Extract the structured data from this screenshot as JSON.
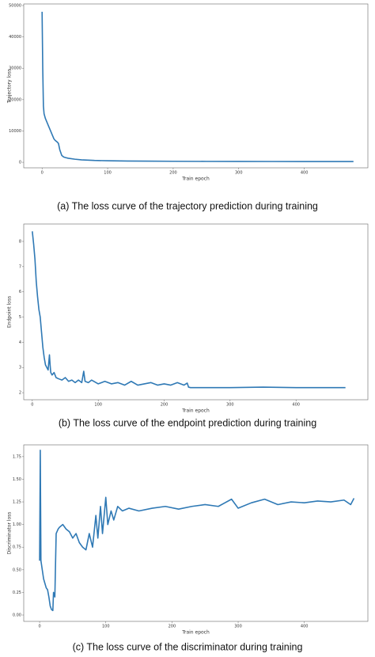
{
  "chart_data": [
    {
      "type": "line",
      "caption": "(a) The loss curve of the trajectory prediction during training",
      "xlabel": "Train epoch",
      "ylabel": "Trajectory loss",
      "color": "#2f79b5",
      "x": [
        0,
        1,
        2,
        3,
        5,
        8,
        10,
        13,
        15,
        18,
        20,
        23,
        25,
        27,
        30,
        33,
        36,
        40,
        50,
        60,
        70,
        80,
        100,
        130,
        160,
        200,
        250,
        300,
        350,
        400,
        450,
        475
      ],
      "values": [
        48000,
        30000,
        18000,
        15500,
        14000,
        12500,
        11500,
        10000,
        9000,
        7500,
        7000,
        6500,
        6000,
        4000,
        2200,
        1700,
        1500,
        1300,
        1000,
        800,
        700,
        600,
        500,
        420,
        380,
        330,
        300,
        280,
        270,
        260,
        250,
        250
      ],
      "xlim": [
        -28,
        497
      ],
      "xticks": [
        0,
        100,
        200,
        300,
        400
      ],
      "ylim": [
        -1750,
        50500
      ],
      "yticks": [
        0,
        10000,
        20000,
        30000,
        40000,
        50000
      ]
    },
    {
      "type": "line",
      "caption": "(b) The loss curve of the endpoint prediction during training",
      "xlabel": "Train epoch",
      "ylabel": "Endpoint loss",
      "color": "#2f79b5",
      "x": [
        0,
        2,
        4,
        6,
        8,
        10,
        12,
        14,
        16,
        18,
        20,
        22,
        24,
        26,
        27,
        28,
        30,
        33,
        36,
        40,
        45,
        50,
        55,
        60,
        65,
        70,
        75,
        78,
        80,
        85,
        90,
        100,
        110,
        120,
        130,
        140,
        150,
        160,
        170,
        180,
        190,
        200,
        210,
        220,
        230,
        235,
        237,
        240,
        260,
        300,
        350,
        400,
        450,
        475
      ],
      "values": [
        8.4,
        7.9,
        7.3,
        6.4,
        5.8,
        5.3,
        5.0,
        4.4,
        3.8,
        3.4,
        3.1,
        3.0,
        2.9,
        3.5,
        3.1,
        2.8,
        2.7,
        2.8,
        2.6,
        2.55,
        2.5,
        2.6,
        2.45,
        2.5,
        2.4,
        2.5,
        2.4,
        2.85,
        2.45,
        2.4,
        2.5,
        2.35,
        2.45,
        2.35,
        2.4,
        2.3,
        2.45,
        2.3,
        2.35,
        2.4,
        2.3,
        2.35,
        2.3,
        2.4,
        2.3,
        2.38,
        2.22,
        2.2,
        2.2,
        2.2,
        2.22,
        2.2,
        2.2,
        2.2
      ],
      "xlim": [
        -13,
        509
      ],
      "xticks": [
        0,
        100,
        200,
        300,
        400
      ],
      "ylim": [
        1.72,
        8.69
      ],
      "yticks": [
        2,
        3,
        4,
        5,
        6,
        7,
        8
      ]
    },
    {
      "type": "line",
      "caption": "(c) The loss curve of the discriminator during training",
      "xlabel": "Train epoch",
      "ylabel": "Discriminator loss",
      "color": "#2f79b5",
      "x": [
        0,
        1,
        2,
        4,
        6,
        8,
        10,
        12,
        14,
        16,
        18,
        20,
        21,
        23,
        25,
        28,
        30,
        35,
        40,
        45,
        50,
        55,
        60,
        65,
        70,
        75,
        80,
        85,
        88,
        92,
        95,
        100,
        103,
        108,
        112,
        118,
        125,
        135,
        150,
        170,
        190,
        210,
        230,
        250,
        270,
        290,
        300,
        320,
        340,
        360,
        380,
        400,
        420,
        440,
        460,
        470,
        475
      ],
      "values": [
        0.6,
        1.82,
        0.6,
        0.5,
        0.4,
        0.35,
        0.3,
        0.28,
        0.2,
        0.1,
        0.06,
        0.05,
        0.25,
        0.2,
        0.9,
        0.95,
        0.97,
        1.0,
        0.95,
        0.92,
        0.85,
        0.9,
        0.8,
        0.75,
        0.72,
        0.9,
        0.75,
        1.1,
        0.85,
        1.2,
        0.9,
        1.3,
        1.0,
        1.15,
        1.05,
        1.2,
        1.15,
        1.18,
        1.15,
        1.18,
        1.2,
        1.17,
        1.2,
        1.22,
        1.2,
        1.28,
        1.18,
        1.24,
        1.28,
        1.22,
        1.25,
        1.24,
        1.26,
        1.25,
        1.27,
        1.22,
        1.29
      ],
      "xlim": [
        -24,
        496
      ],
      "xticks": [
        0,
        100,
        200,
        300,
        400
      ],
      "ylim": [
        -0.07,
        1.88
      ],
      "yticks": [
        {
          "value": 0,
          "label": "0.00"
        },
        {
          "value": 0.25,
          "label": "0.25"
        },
        {
          "value": 0.5,
          "label": "0.50"
        },
        {
          "value": 0.75,
          "label": "0.75"
        },
        {
          "value": 1,
          "label": "1.00"
        },
        {
          "value": 1.25,
          "label": "1.25"
        },
        {
          "value": 1.5,
          "label": "1.50"
        },
        {
          "value": 1.75,
          "label": "1.75"
        }
      ]
    }
  ]
}
